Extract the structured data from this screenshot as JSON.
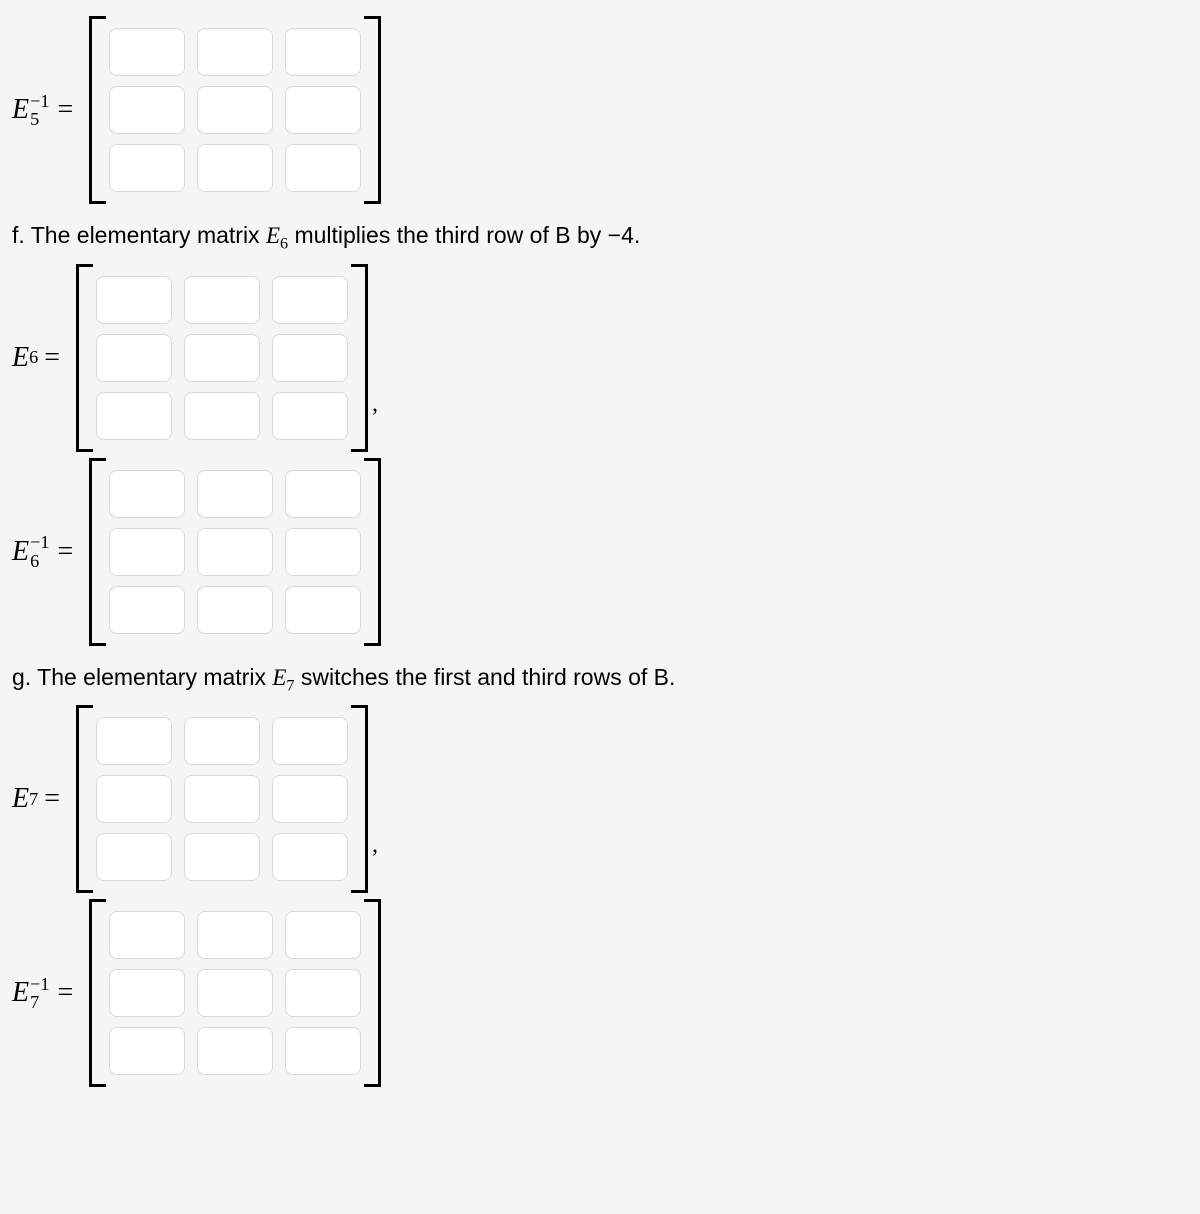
{
  "rows": [
    {
      "type": "matrix",
      "label_html": "<span class='mi'>E</span><span class='supsub'><span class='sup'>−1</span><span class='sub'>5</span></span><span class='eq'>=</span>",
      "name": "e5-inverse",
      "trail": ""
    },
    {
      "type": "prompt",
      "text": "f. The elementary matrix E₆ multiplies the third row of B by −4.",
      "math": "E₆",
      "before": "f. The elementary matrix ",
      "after": " multiplies the third row of B by −4.",
      "sub": "6"
    },
    {
      "type": "matrix",
      "label_html": "<span class='mi'>E</span><span class='sub' style='vertical-align:sub'>6</span><span class='eq'>=</span>",
      "name": "e6",
      "trail": ","
    },
    {
      "type": "matrix",
      "label_html": "<span class='mi'>E</span><span class='supsub'><span class='sup'>−1</span><span class='sub'>6</span></span><span class='eq'>=</span>",
      "name": "e6-inverse",
      "trail": ""
    },
    {
      "type": "prompt",
      "text": "g. The elementary matrix E₇ switches the first and third rows of B.",
      "before": "g. The elementary matrix ",
      "after": " switches the first and third rows of B.",
      "sub": "7"
    },
    {
      "type": "matrix",
      "label_html": "<span class='mi'>E</span><span class='sub' style='vertical-align:sub'>7</span><span class='eq'>=</span>",
      "name": "e7",
      "trail": ","
    },
    {
      "type": "matrix",
      "label_html": "<span class='mi'>E</span><span class='supsub'><span class='sup'>−1</span><span class='sub'>7</span></span><span class='eq'>=</span>",
      "name": "e7-inverse",
      "trail": "",
      "partial": true
    }
  ],
  "matrix_size": 3
}
